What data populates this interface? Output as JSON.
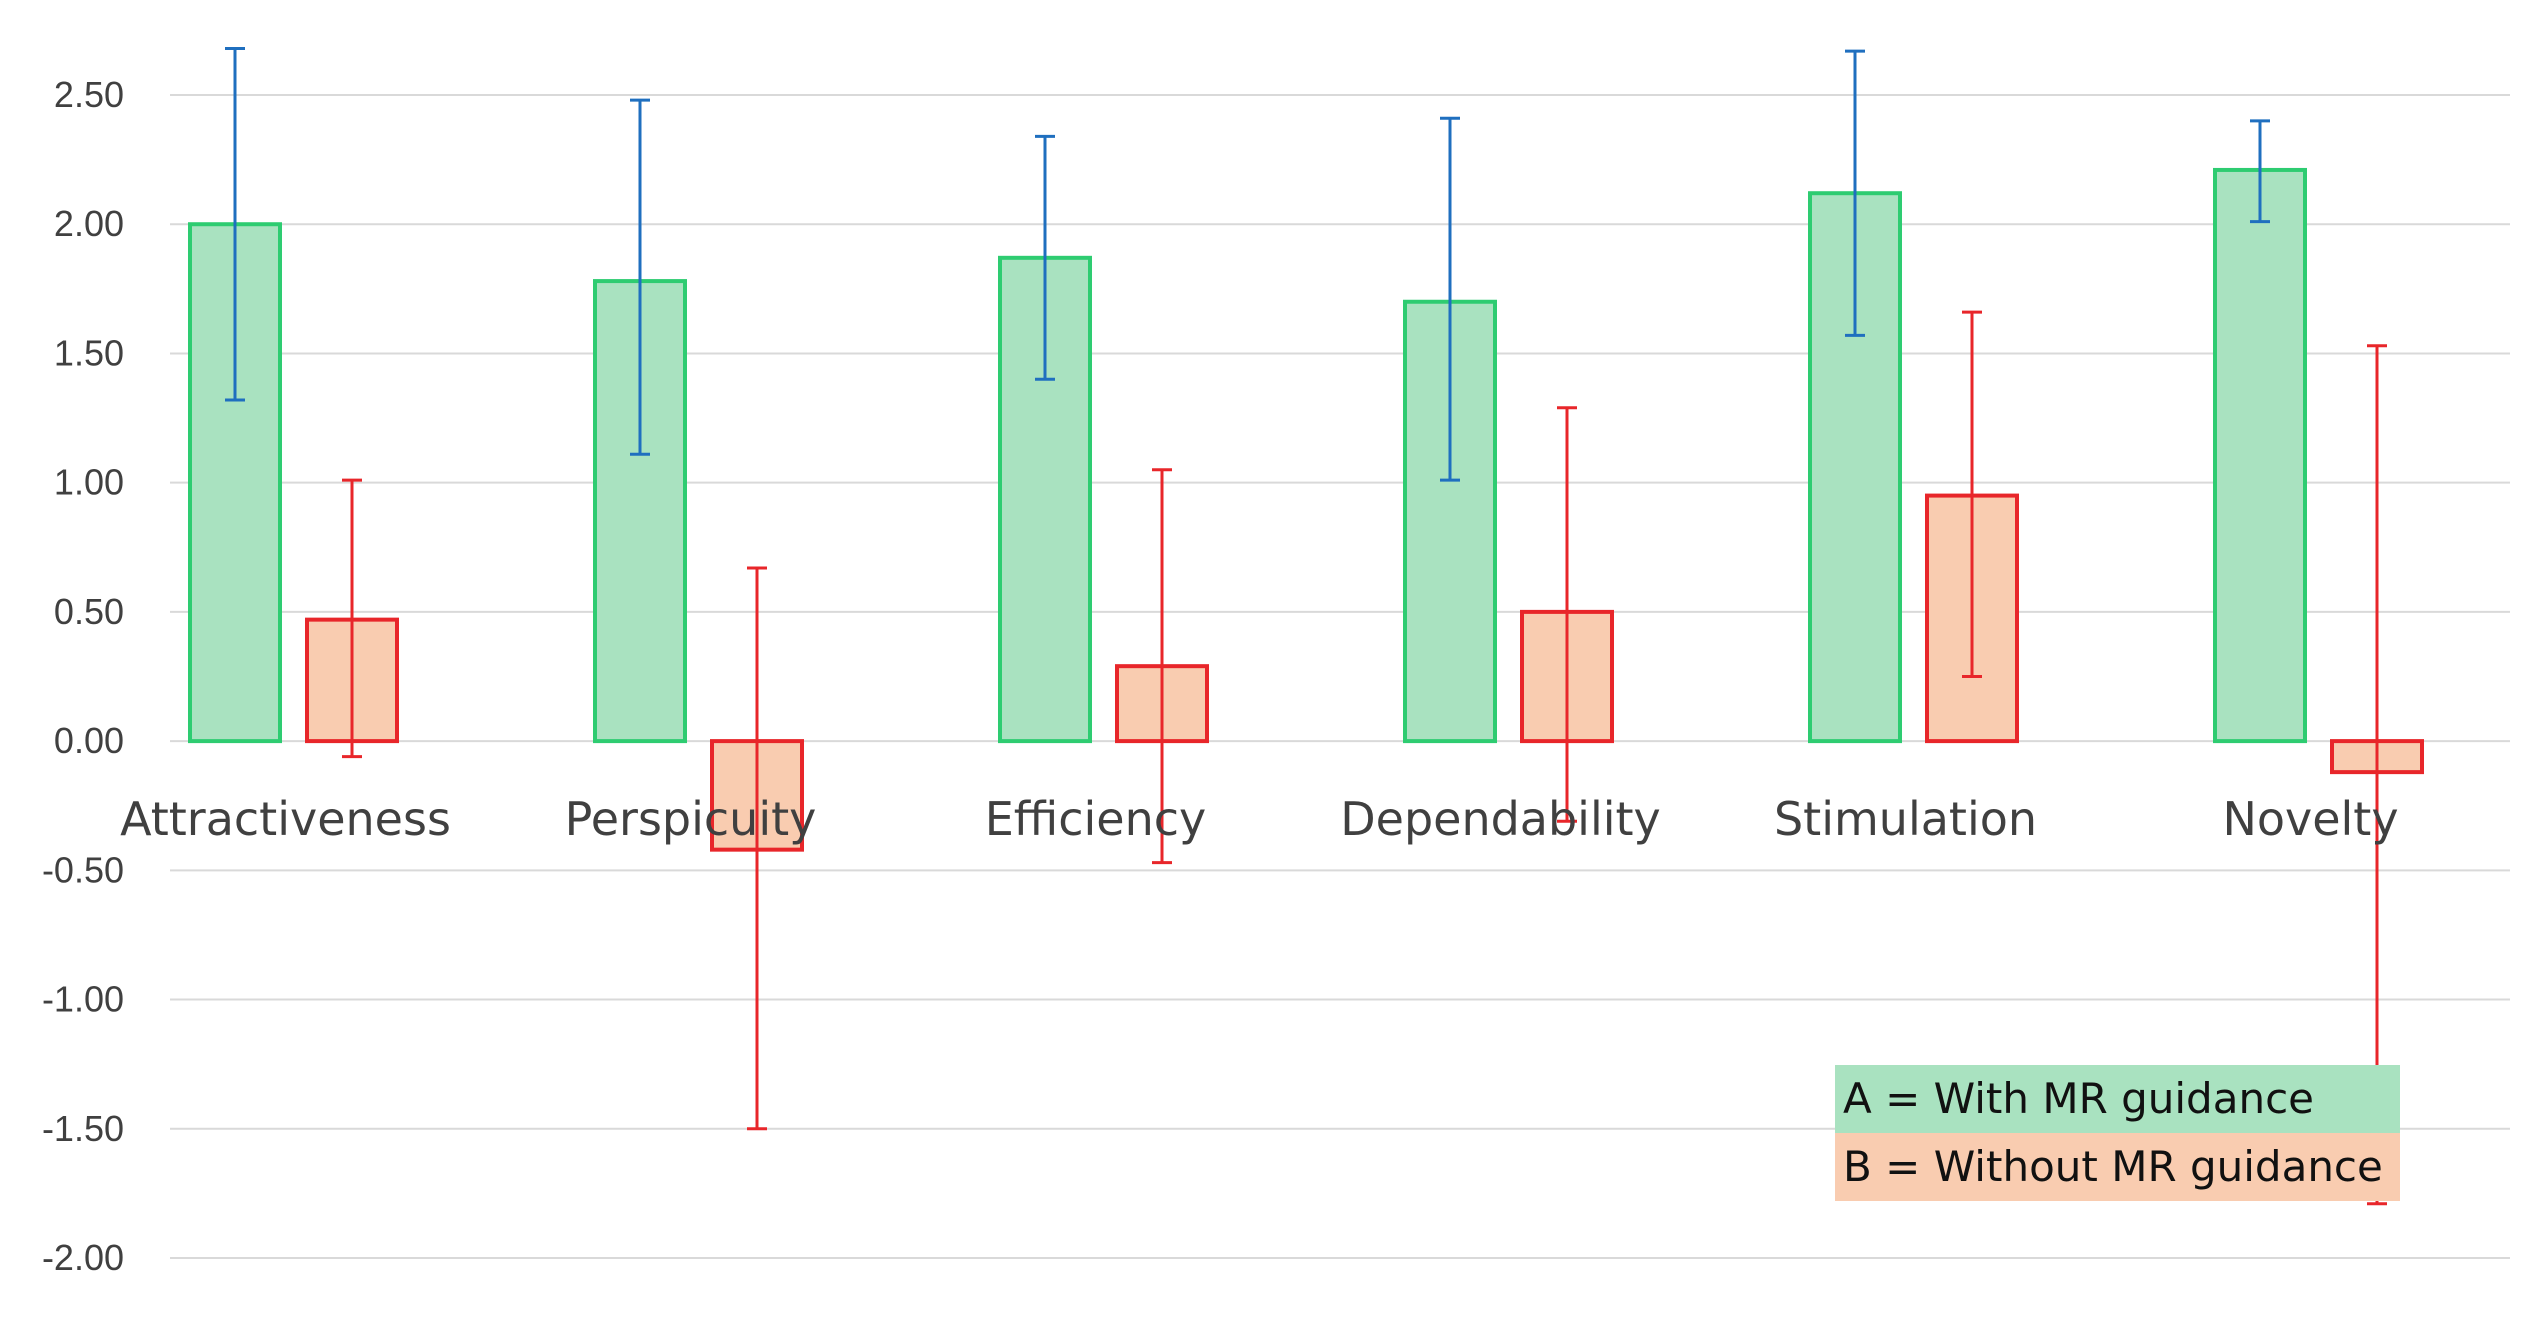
{
  "chart_data": {
    "type": "bar",
    "title": "",
    "xlabel": "",
    "ylabel": "",
    "categories": [
      "Attractiveness",
      "Perspicuity",
      "Efficiency",
      "Dependability",
      "Stimulation",
      "Novelty"
    ],
    "series": [
      {
        "name": "A = With MR guidance",
        "values": [
          2.0,
          1.78,
          1.87,
          1.7,
          2.12,
          2.21
        ],
        "error_low": [
          1.32,
          1.11,
          1.4,
          1.01,
          1.57,
          2.01
        ],
        "error_high": [
          2.68,
          2.48,
          2.34,
          2.41,
          2.67,
          2.4
        ],
        "fill_color": "#a9e2c0",
        "stroke_color": "#2ecc71",
        "error_color": "#1f6fbf"
      },
      {
        "name": "B = Without MR guidance",
        "values": [
          0.47,
          -0.42,
          0.29,
          0.5,
          0.95,
          -0.12
        ],
        "error_low": [
          -0.06,
          -1.5,
          -0.47,
          -0.31,
          0.25,
          -1.79
        ],
        "error_high": [
          1.01,
          0.67,
          1.05,
          1.29,
          1.66,
          1.53
        ],
        "fill_color": "#f9ccb0",
        "stroke_color": "#e8262a",
        "error_color": "#e8262a"
      }
    ],
    "ylim": [
      -2.0,
      2.5
    ],
    "yticks": [
      "2.50",
      "2.00",
      "1.50",
      "1.00",
      "0.50",
      "0.00",
      "-0.50",
      "-1.00",
      "-1.50",
      "-2.00"
    ],
    "ytick_values": [
      2.5,
      2.0,
      1.5,
      1.0,
      0.5,
      0.0,
      -0.5,
      -1.0,
      -1.5,
      -2.0
    ],
    "grid": true,
    "grid_color": "#d9d9d9",
    "legend_position": "bottom-right"
  }
}
